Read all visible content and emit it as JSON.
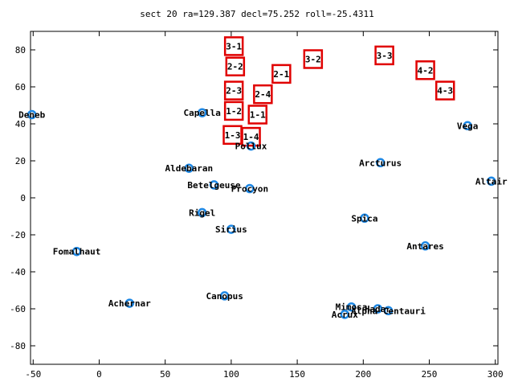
{
  "chart_data": {
    "type": "scatter",
    "title": "sect 20 ra=129.387 decl=75.252 roll=-25.4311",
    "xlim": [
      -52,
      302
    ],
    "ylim": [
      -90,
      90
    ],
    "x_ticks": [
      -50,
      0,
      50,
      100,
      150,
      200,
      250,
      300
    ],
    "y_ticks": [
      -80,
      -60,
      -40,
      -20,
      0,
      20,
      40,
      60,
      80
    ],
    "grid": false,
    "legend": "none",
    "colors": {
      "star": "#1e88e5",
      "box": "#e00000",
      "axis": "#000000"
    },
    "stars": [
      {
        "name": "Deneb",
        "x": -51,
        "y": 45
      },
      {
        "name": "Capella",
        "x": 78,
        "y": 46
      },
      {
        "name": "Vega",
        "x": 279,
        "y": 39
      },
      {
        "name": "Pollux",
        "x": 115,
        "y": 28
      },
      {
        "name": "Arcturus",
        "x": 213,
        "y": 19
      },
      {
        "name": "Aldebaran",
        "x": 68,
        "y": 16
      },
      {
        "name": "Altair",
        "x": 297,
        "y": 9
      },
      {
        "name": "Betelgeuse",
        "x": 87,
        "y": 7
      },
      {
        "name": "Procyon",
        "x": 114,
        "y": 5
      },
      {
        "name": "Rigel",
        "x": 78,
        "y": -8
      },
      {
        "name": "Spica",
        "x": 201,
        "y": -11
      },
      {
        "name": "Sirius",
        "x": 100,
        "y": -17
      },
      {
        "name": "Antares",
        "x": 247,
        "y": -26
      },
      {
        "name": "Fomalhaut",
        "x": -17,
        "y": -29
      },
      {
        "name": "Canopus",
        "x": 95,
        "y": -53
      },
      {
        "name": "Achernar",
        "x": 23,
        "y": -57
      },
      {
        "name": "Mimosa",
        "x": 191,
        "y": -59
      },
      {
        "name": "Hadar",
        "x": 211,
        "y": -60
      },
      {
        "name": "Alpha Centauri",
        "x": 219,
        "y": -61
      },
      {
        "name": "Acrux",
        "x": 186,
        "y": -63
      }
    ],
    "sector_boxes": [
      {
        "label": "3-1",
        "x": 102,
        "y": 82
      },
      {
        "label": "2-2",
        "x": 103,
        "y": 71
      },
      {
        "label": "3-2",
        "x": 162,
        "y": 75
      },
      {
        "label": "3-3",
        "x": 216,
        "y": 77
      },
      {
        "label": "4-2",
        "x": 247,
        "y": 69
      },
      {
        "label": "2-1",
        "x": 138,
        "y": 67
      },
      {
        "label": "4-3",
        "x": 262,
        "y": 58
      },
      {
        "label": "2-3",
        "x": 102,
        "y": 58
      },
      {
        "label": "2-4",
        "x": 124,
        "y": 56
      },
      {
        "label": "1-2",
        "x": 102,
        "y": 47
      },
      {
        "label": "1-1",
        "x": 120,
        "y": 45
      },
      {
        "label": "1-3",
        "x": 101,
        "y": 34
      },
      {
        "label": "1-4",
        "x": 115,
        "y": 33
      }
    ]
  }
}
